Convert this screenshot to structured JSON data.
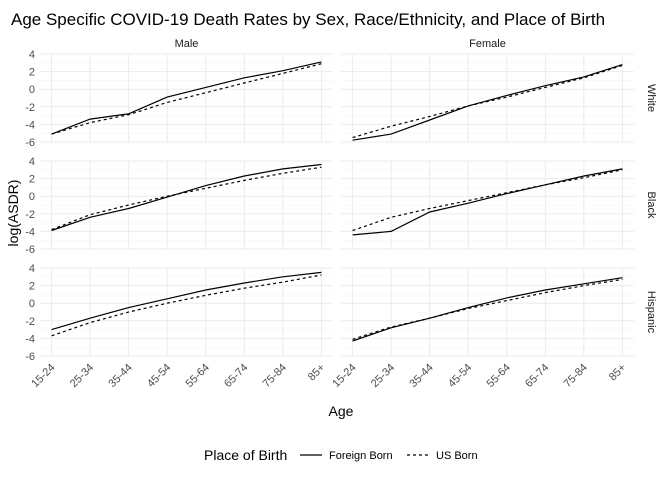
{
  "chart_data": {
    "type": "line",
    "title": "Age Specific COVID-19 Death Rates by Sex, Race/Ethnicity, and Place of Birth",
    "xlabel": "Age",
    "ylabel": "log(ASDR)",
    "categories": [
      "15-24",
      "25-34",
      "35-44",
      "45-54",
      "55-64",
      "65-74",
      "75-84",
      "85+"
    ],
    "ylim": [
      -6,
      4
    ],
    "yticks": [
      -6,
      -4,
      -2,
      0,
      2,
      4
    ],
    "ytick_labels": [
      "-6",
      "-4",
      "-2",
      "0",
      "2",
      "4"
    ],
    "grid": true,
    "col_facets": [
      "Male",
      "Female"
    ],
    "row_facets": [
      "White",
      "Black",
      "Hispanic"
    ],
    "legend": {
      "title": "Place of Birth",
      "position": "bottom",
      "entries": [
        {
          "label": "Foreign Born",
          "linetype": "solid"
        },
        {
          "label": "US Born",
          "linetype": "dashed"
        }
      ]
    },
    "panels": [
      {
        "row": "White",
        "col": "Male",
        "series": [
          {
            "name": "Foreign Born",
            "values": [
              -5.1,
              -3.4,
              -2.8,
              -0.9,
              0.2,
              1.3,
              2.1,
              3.1
            ]
          },
          {
            "name": "US Born",
            "values": [
              -5.1,
              -3.8,
              -2.9,
              -1.5,
              -0.4,
              0.7,
              1.8,
              2.9
            ]
          }
        ]
      },
      {
        "row": "White",
        "col": "Female",
        "series": [
          {
            "name": "Foreign Born",
            "values": [
              -5.8,
              -5.1,
              -3.5,
              -1.9,
              -0.7,
              0.4,
              1.4,
              2.8
            ]
          },
          {
            "name": "US Born",
            "values": [
              -5.5,
              -4.2,
              -3.1,
              -1.9,
              -0.9,
              0.2,
              1.3,
              2.7
            ]
          }
        ]
      },
      {
        "row": "Black",
        "col": "Male",
        "series": [
          {
            "name": "Foreign Born",
            "values": [
              -3.9,
              -2.4,
              -1.4,
              -0.1,
              1.2,
              2.3,
              3.1,
              3.6
            ]
          },
          {
            "name": "US Born",
            "values": [
              -3.8,
              -2.1,
              -1.0,
              0.0,
              0.9,
              1.8,
              2.6,
              3.3
            ]
          }
        ]
      },
      {
        "row": "Black",
        "col": "Female",
        "series": [
          {
            "name": "Foreign Born",
            "values": [
              -4.4,
              -4.0,
              -1.8,
              -0.8,
              0.3,
              1.3,
              2.3,
              3.1
            ]
          },
          {
            "name": "US Born",
            "values": [
              -3.9,
              -2.4,
              -1.4,
              -0.5,
              0.4,
              1.3,
              2.1,
              3.0
            ]
          }
        ]
      },
      {
        "row": "Hispanic",
        "col": "Male",
        "series": [
          {
            "name": "Foreign Born",
            "values": [
              -3.0,
              -1.7,
              -0.5,
              0.5,
              1.5,
              2.3,
              3.0,
              3.5
            ]
          },
          {
            "name": "US Born",
            "values": [
              -3.7,
              -2.2,
              -1.0,
              0.0,
              0.9,
              1.7,
              2.4,
              3.2
            ]
          }
        ]
      },
      {
        "row": "Hispanic",
        "col": "Female",
        "series": [
          {
            "name": "Foreign Born",
            "values": [
              -4.3,
              -2.8,
              -1.7,
              -0.5,
              0.6,
              1.5,
              2.2,
              2.9
            ]
          },
          {
            "name": "US Born",
            "values": [
              -4.1,
              -2.7,
              -1.7,
              -0.6,
              0.3,
              1.2,
              2.0,
              2.7
            ]
          }
        ]
      }
    ]
  }
}
